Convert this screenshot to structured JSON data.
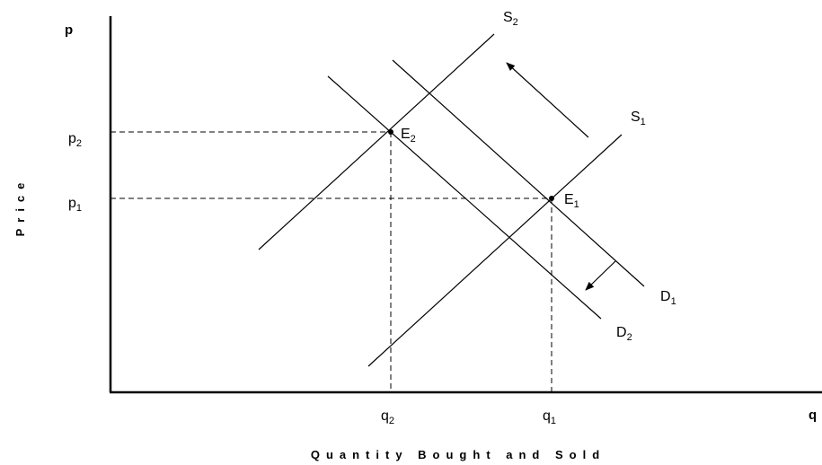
{
  "axes": {
    "y_symbol": "p",
    "x_symbol": "q",
    "y_title": "Price",
    "x_title": "Quantity Bought and Sold"
  },
  "curves": {
    "s1": {
      "main": "S",
      "sub": "1"
    },
    "s2": {
      "main": "S",
      "sub": "2"
    },
    "d1": {
      "main": "D",
      "sub": "1"
    },
    "d2": {
      "main": "D",
      "sub": "2"
    }
  },
  "equilibria": {
    "e1": {
      "main": "E",
      "sub": "1"
    },
    "e2": {
      "main": "E",
      "sub": "2"
    }
  },
  "ticks": {
    "p1": {
      "main": "p",
      "sub": "1"
    },
    "p2": {
      "main": "p",
      "sub": "2"
    },
    "q1": {
      "main": "q",
      "sub": "1"
    },
    "q2": {
      "main": "q",
      "sub": "2"
    }
  },
  "colors": {
    "ink": "#000000",
    "background": "#ffffff"
  }
}
